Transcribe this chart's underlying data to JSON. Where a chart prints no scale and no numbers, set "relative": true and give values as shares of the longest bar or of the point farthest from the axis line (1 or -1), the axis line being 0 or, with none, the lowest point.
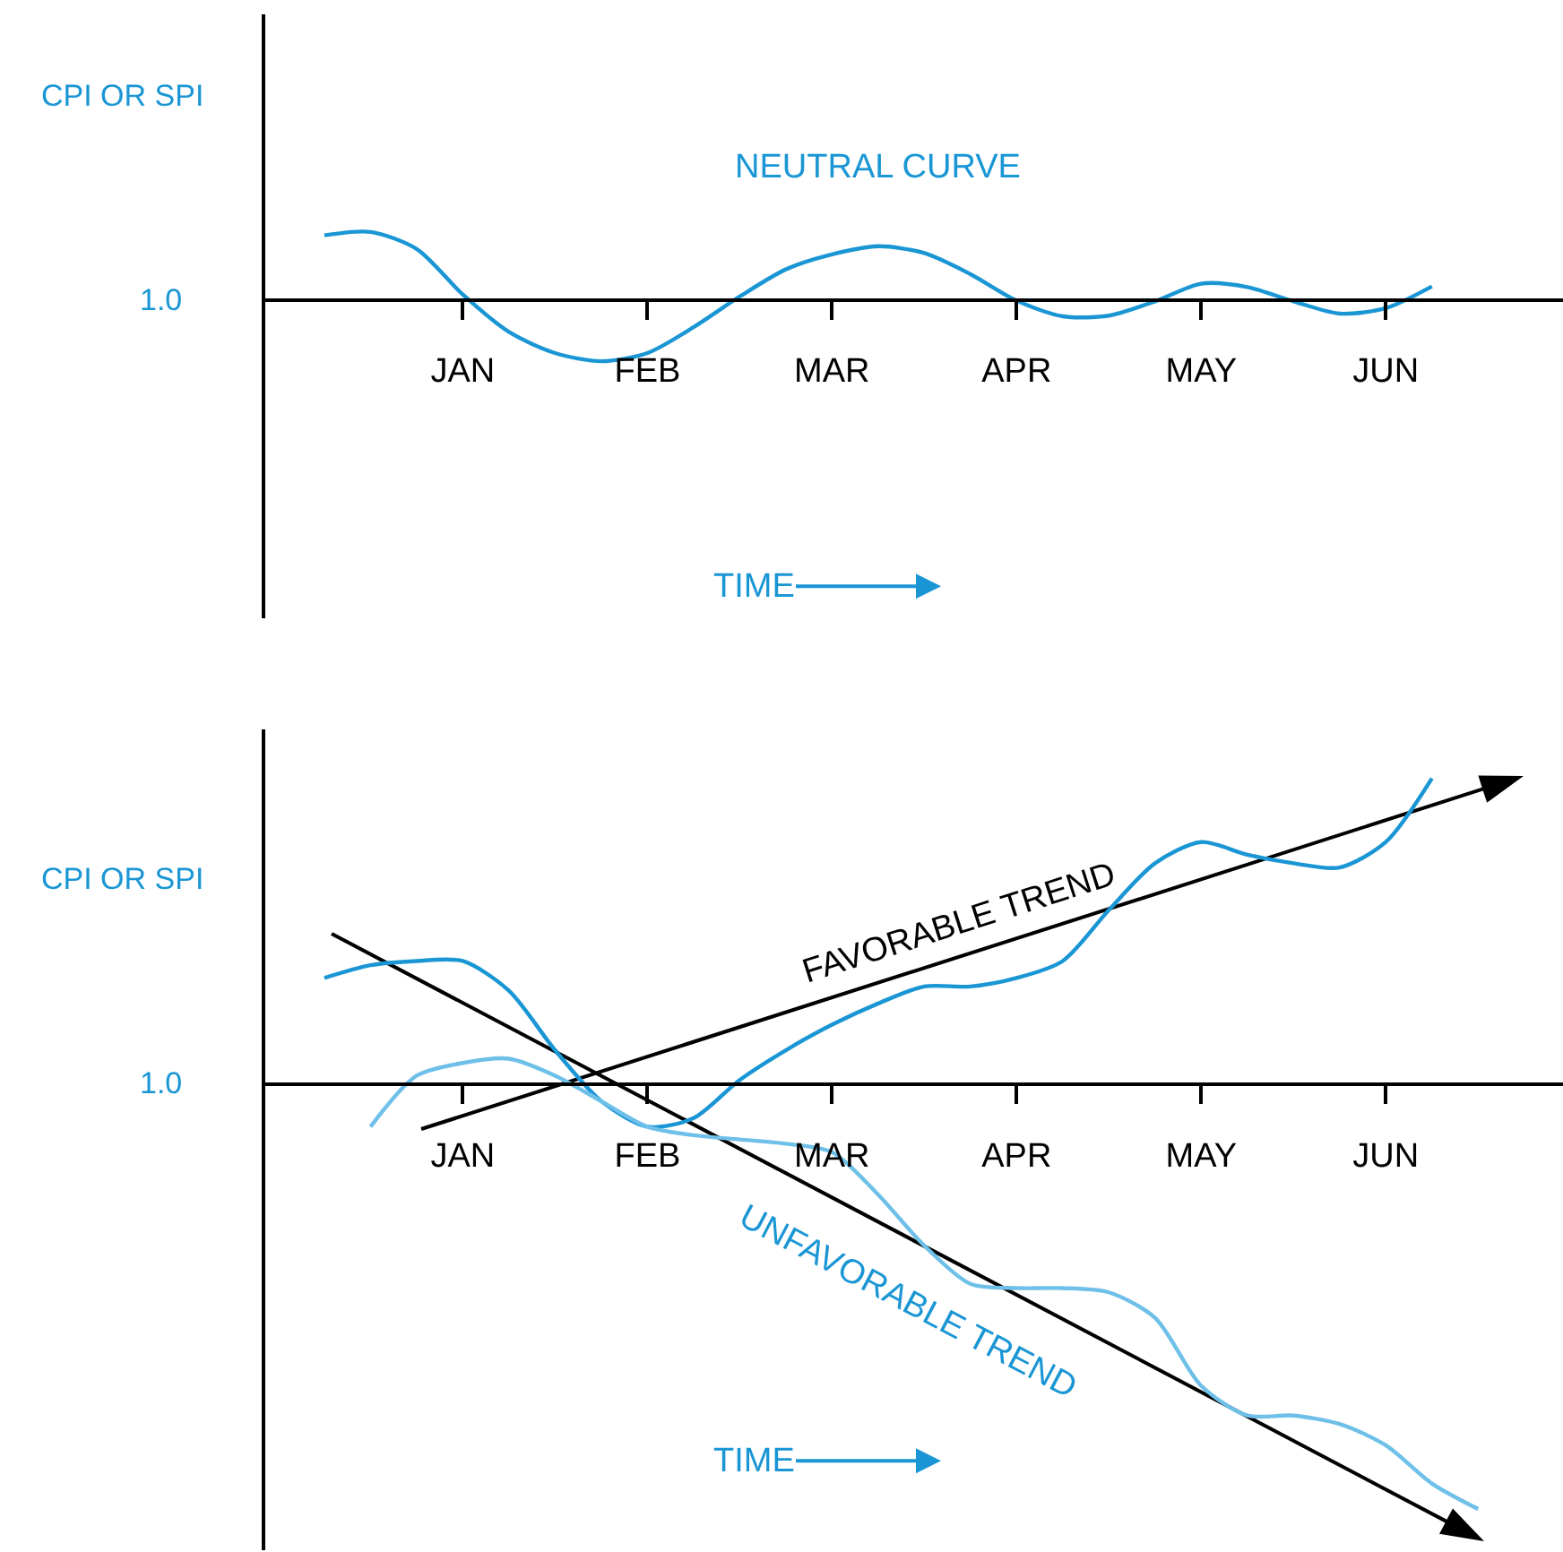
{
  "chart_data": [
    {
      "type": "line",
      "relative": true,
      "ylabel": "CPI OR SPI",
      "xlabel": "TIME",
      "categories": [
        null,
        null,
        null,
        null,
        "JAN",
        null,
        null,
        null,
        "FEB",
        null,
        null,
        null,
        "MAR",
        null,
        null,
        null,
        "APR",
        null,
        null,
        null,
        "MAY",
        null,
        null,
        null,
        "JUN",
        null,
        null,
        null
      ],
      "annotations": [
        "1.0"
      ],
      "series": [
        {
          "name": "NEUTRAL CURVE",
          "color": "#1a96d4",
          "values": [
            null,
            0.95,
            1.0,
            0.75,
            0.08,
            -0.47,
            -0.78,
            -0.9,
            -0.78,
            -0.4,
            0.05,
            0.45,
            0.67,
            0.79,
            0.69,
            0.38,
            -0.01,
            -0.24,
            -0.23,
            -0.02,
            0.24,
            0.19,
            -0.02,
            -0.2,
            -0.12,
            0.2,
            null,
            null
          ]
        }
      ],
      "grid": false,
      "legend": false,
      "marker": "none",
      "tick_labels": "x"
    },
    {
      "type": "line",
      "relative": true,
      "ylabel": "CPI OR SPI",
      "xlabel": "TIME",
      "categories": [
        null,
        null,
        null,
        null,
        "JAN",
        null,
        null,
        null,
        "FEB",
        null,
        null,
        null,
        "MAR",
        null,
        null,
        null,
        "APR",
        null,
        null,
        null,
        "MAY",
        null,
        null,
        null,
        "JUN",
        null,
        null,
        null
      ],
      "annotations": [
        "1.0",
        "FAVORABLE TREND",
        "UNFAVORABLE TREND"
      ],
      "series": [
        {
          "color": "#1a96d4",
          "values": [
            null,
            0.25,
            0.28,
            0.29,
            0.29,
            0.22,
            0.08,
            -0.04,
            -0.1,
            -0.08,
            0.01,
            0.08,
            0.14,
            0.19,
            0.23,
            0.23,
            0.25,
            0.29,
            0.41,
            0.52,
            0.57,
            0.54,
            0.52,
            0.51,
            0.57,
            0.72,
            null,
            null
          ]
        },
        {
          "color": "#6ec0e8",
          "values": [
            null,
            null,
            -0.1,
            0.02,
            0.05,
            0.06,
            0.02,
            -0.04,
            -0.1,
            -0.12,
            -0.13,
            -0.14,
            -0.16,
            -0.26,
            -0.38,
            -0.47,
            -0.48,
            -0.48,
            -0.49,
            -0.55,
            -0.71,
            -0.78,
            -0.78,
            -0.8,
            -0.85,
            -0.94,
            -1.0,
            null
          ]
        }
      ],
      "grid": false,
      "legend": false,
      "marker": "none",
      "tick_labels": "x"
    }
  ]
}
